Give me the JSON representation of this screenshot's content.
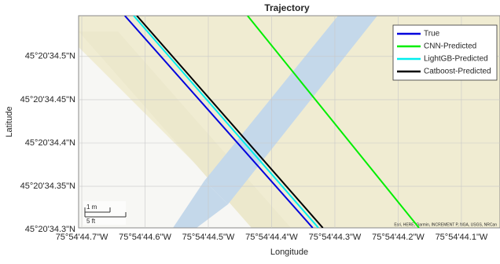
{
  "chart_data": {
    "type": "line",
    "title": "Trajectory",
    "x_label": "Longitude",
    "y_label": "Latitude",
    "xlim": [
      44.705,
      44.039
    ],
    "ylim": [
      34.302,
      34.547
    ],
    "xticks": [
      {
        "value": 44.7,
        "label": "75°54'44.7\"W"
      },
      {
        "value": 44.6,
        "label": "75°54'44.6\"W"
      },
      {
        "value": 44.5,
        "label": "75°54'44.5\"W"
      },
      {
        "value": 44.4,
        "label": "75°54'44.4\"W"
      },
      {
        "value": 44.3,
        "label": "75°54'44.3\"W"
      },
      {
        "value": 44.2,
        "label": "75°54'44.2\"W"
      },
      {
        "value": 44.1,
        "label": "75°54'44.1\"W"
      }
    ],
    "yticks": [
      {
        "value": 34.3,
        "label": "45°20'34.3\"N"
      },
      {
        "value": 34.35,
        "label": "45°20'34.35\"N"
      },
      {
        "value": 34.4,
        "label": "45°20'34.4\"N"
      },
      {
        "value": 34.45,
        "label": "45°20'34.45\"N"
      },
      {
        "value": 34.5,
        "label": "45°20'34.5\"N"
      }
    ],
    "grid": true,
    "legend_position": "northeast",
    "series": [
      {
        "name": "True",
        "color": "#0000dd",
        "x": [
          44.632,
          44.335
        ],
        "y": [
          34.547,
          34.302
        ]
      },
      {
        "name": "CNN-Predicted",
        "color": "#00ee00",
        "x": [
          44.438,
          44.167
        ],
        "y": [
          34.547,
          34.302
        ]
      },
      {
        "name": "LightGB-Predicted",
        "color": "#00eeee",
        "x": [
          44.618,
          44.326
        ],
        "y": [
          34.547,
          34.302
        ]
      },
      {
        "name": "Catboost-Predicted",
        "color": "#000000",
        "x": [
          44.613,
          44.319
        ],
        "y": [
          34.547,
          34.302
        ]
      }
    ],
    "scale_bar": {
      "metric": "1 m",
      "imperial": "5 ft"
    },
    "attribution": "Esri, HERE, Garmin, INCREMENT P, NGA, USGS, NRCan"
  }
}
